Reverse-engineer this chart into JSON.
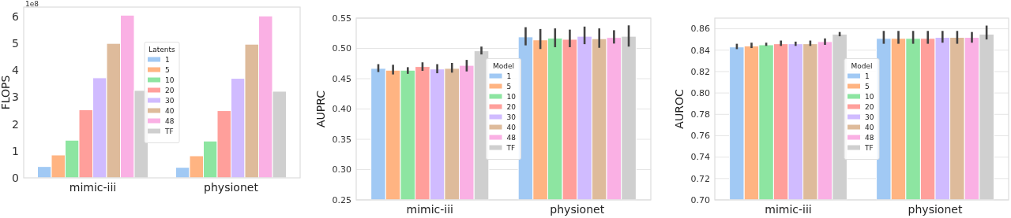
{
  "chart_data": [
    {
      "type": "bar",
      "ylabel": "FLOPS",
      "legend_title": "Latents",
      "legend": "center",
      "grid": false,
      "annotations": [
        "1e8"
      ],
      "categories": [
        "mimic-iii",
        "physionet"
      ],
      "ylim": [
        0,
        6.35
      ],
      "yticks": [
        0,
        1,
        2,
        3,
        4,
        5,
        6
      ],
      "series": [
        {
          "name": "1",
          "color": "#a1c9f4",
          "values": [
            0.42,
            0.39
          ]
        },
        {
          "name": "5",
          "color": "#ffb482",
          "values": [
            0.85,
            0.82
          ]
        },
        {
          "name": "10",
          "color": "#8de5a1",
          "values": [
            1.4,
            1.37
          ]
        },
        {
          "name": "20",
          "color": "#ff9f9b",
          "values": [
            2.53,
            2.5
          ]
        },
        {
          "name": "30",
          "color": "#d0bbff",
          "values": [
            3.72,
            3.7
          ]
        },
        {
          "name": "40",
          "color": "#debb9b",
          "values": [
            5.0,
            4.97
          ]
        },
        {
          "name": "48",
          "color": "#fab0e4",
          "values": [
            6.05,
            6.02
          ]
        },
        {
          "name": "TF",
          "color": "#cfcfcf",
          "values": [
            3.25,
            3.22
          ]
        }
      ]
    },
    {
      "type": "bar",
      "ylabel": "AUPRC",
      "legend_title": "Model",
      "legend": "center",
      "grid": "y",
      "categories": [
        "mimic-iii",
        "physionet"
      ],
      "ylim": [
        0.25,
        0.55
      ],
      "yticks": [
        {
          "value": 0.25,
          "label": "0.25"
        },
        {
          "value": 0.3,
          "label": "0.30"
        },
        {
          "value": 0.35,
          "label": "0.35"
        },
        {
          "value": 0.4,
          "label": "0.40"
        },
        {
          "value": 0.45,
          "label": "0.45"
        },
        {
          "value": 0.5,
          "label": "0.50"
        },
        {
          "value": 0.55,
          "label": "0.55"
        }
      ],
      "series": [
        {
          "name": "1",
          "color": "#a1c9f4",
          "values": [
            0.467,
            0.519
          ],
          "errors": [
            [
              0.461,
              0.474
            ],
            [
              0.505,
              0.535
            ]
          ]
        },
        {
          "name": "5",
          "color": "#ffb482",
          "values": [
            0.464,
            0.514
          ],
          "errors": [
            [
              0.457,
              0.473
            ],
            [
              0.499,
              0.532
            ]
          ]
        },
        {
          "name": "10",
          "color": "#8de5a1",
          "values": [
            0.464,
            0.517
          ],
          "errors": [
            [
              0.458,
              0.469
            ],
            [
              0.502,
              0.533
            ]
          ]
        },
        {
          "name": "20",
          "color": "#ff9f9b",
          "values": [
            0.47,
            0.515
          ],
          "errors": [
            [
              0.463,
              0.477
            ],
            [
              0.502,
              0.531
            ]
          ]
        },
        {
          "name": "30",
          "color": "#d0bbff",
          "values": [
            0.466,
            0.52
          ],
          "errors": [
            [
              0.459,
              0.474
            ],
            [
              0.507,
              0.536
            ]
          ]
        },
        {
          "name": "40",
          "color": "#debb9b",
          "values": [
            0.467,
            0.516
          ],
          "errors": [
            [
              0.46,
              0.476
            ],
            [
              0.501,
              0.533
            ]
          ]
        },
        {
          "name": "48",
          "color": "#fab0e4",
          "values": [
            0.472,
            0.518
          ],
          "errors": [
            [
              0.462,
              0.481
            ],
            [
              0.508,
              0.53
            ]
          ]
        },
        {
          "name": "TF",
          "color": "#cfcfcf",
          "values": [
            0.496,
            0.52
          ],
          "errors": [
            [
              0.49,
              0.503
            ],
            [
              0.503,
              0.538
            ]
          ]
        }
      ]
    },
    {
      "type": "bar",
      "ylabel": "AUROC",
      "legend_title": "Model",
      "legend": "center",
      "grid": "y",
      "categories": [
        "mimic-iii",
        "physionet"
      ],
      "ylim": [
        0.7,
        0.87
      ],
      "yticks": [
        {
          "value": 0.7,
          "label": "0.70"
        },
        {
          "value": 0.72,
          "label": "0.72"
        },
        {
          "value": 0.74,
          "label": "0.74"
        },
        {
          "value": 0.76,
          "label": "0.76"
        },
        {
          "value": 0.78,
          "label": "0.78"
        },
        {
          "value": 0.8,
          "label": "0.80"
        },
        {
          "value": 0.82,
          "label": "0.82"
        },
        {
          "value": 0.84,
          "label": "0.84"
        },
        {
          "value": 0.86,
          "label": "0.86"
        }
      ],
      "series": [
        {
          "name": "1",
          "color": "#a1c9f4",
          "values": [
            0.843,
            0.851
          ],
          "errors": [
            [
              0.841,
              0.846
            ],
            [
              0.846,
              0.858
            ]
          ]
        },
        {
          "name": "5",
          "color": "#ffb482",
          "values": [
            0.844,
            0.851
          ],
          "errors": [
            [
              0.842,
              0.847
            ],
            [
              0.846,
              0.858
            ]
          ]
        },
        {
          "name": "10",
          "color": "#8de5a1",
          "values": [
            0.845,
            0.851
          ],
          "errors": [
            [
              0.844,
              0.847
            ],
            [
              0.846,
              0.858
            ]
          ]
        },
        {
          "name": "20",
          "color": "#ff9f9b",
          "values": [
            0.846,
            0.851
          ],
          "errors": [
            [
              0.844,
              0.849
            ],
            [
              0.846,
              0.858
            ]
          ]
        },
        {
          "name": "30",
          "color": "#d0bbff",
          "values": [
            0.846,
            0.852
          ],
          "errors": [
            [
              0.844,
              0.848
            ],
            [
              0.847,
              0.858
            ]
          ]
        },
        {
          "name": "40",
          "color": "#debb9b",
          "values": [
            0.846,
            0.852
          ],
          "errors": [
            [
              0.844,
              0.849
            ],
            [
              0.846,
              0.858
            ]
          ]
        },
        {
          "name": "48",
          "color": "#fab0e4",
          "values": [
            0.848,
            0.852
          ],
          "errors": [
            [
              0.845,
              0.851
            ],
            [
              0.847,
              0.857
            ]
          ]
        },
        {
          "name": "TF",
          "color": "#cfcfcf",
          "values": [
            0.855,
            0.855
          ],
          "errors": [
            [
              0.853,
              0.857
            ],
            [
              0.85,
              0.863
            ]
          ]
        }
      ]
    }
  ]
}
